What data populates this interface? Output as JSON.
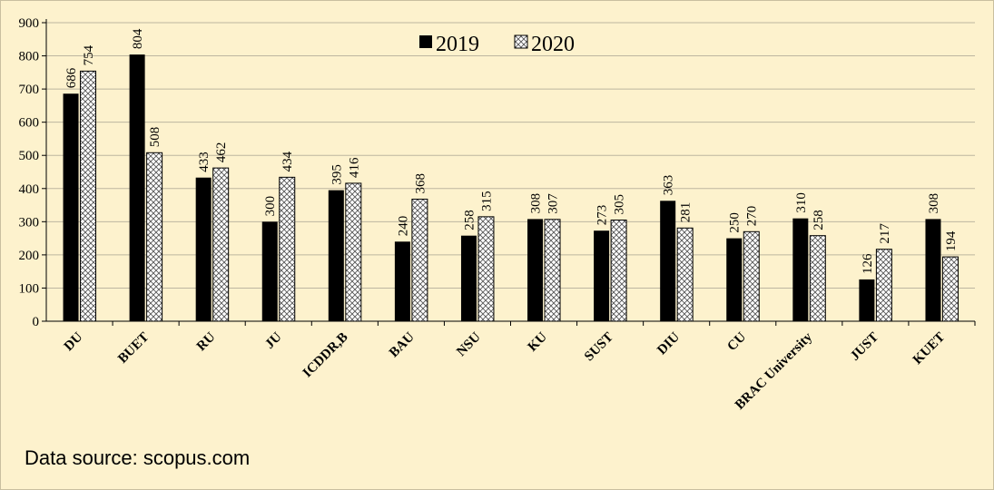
{
  "chart_data": {
    "type": "bar",
    "categories": [
      "DU",
      "BUET",
      "RU",
      "JU",
      "ICDDR,B",
      "BAU",
      "NSU",
      "KU",
      "SUST",
      "DIU",
      "CU",
      "BRAC University",
      "JUST",
      "KUET"
    ],
    "series": [
      {
        "name": "2019",
        "values": [
          686,
          804,
          433,
          300,
          395,
          240,
          258,
          308,
          273,
          363,
          250,
          310,
          126,
          308
        ],
        "color": "#000000",
        "fill": "solid"
      },
      {
        "name": "2020",
        "values": [
          754,
          508,
          462,
          434,
          416,
          368,
          315,
          307,
          305,
          281,
          270,
          258,
          217,
          194
        ],
        "color": "#000000",
        "fill": "crosshatch"
      }
    ],
    "ylim": [
      0,
      900
    ],
    "yticks": [
      0,
      100,
      200,
      300,
      400,
      500,
      600,
      700,
      800,
      900
    ],
    "grid": true,
    "legend": "top-center",
    "title": "",
    "xlabel": "",
    "ylabel": ""
  },
  "source_note": "Data source: scopus.com",
  "colors": {
    "background": "#fdf2cd",
    "gridline": "#bdb6a0"
  }
}
